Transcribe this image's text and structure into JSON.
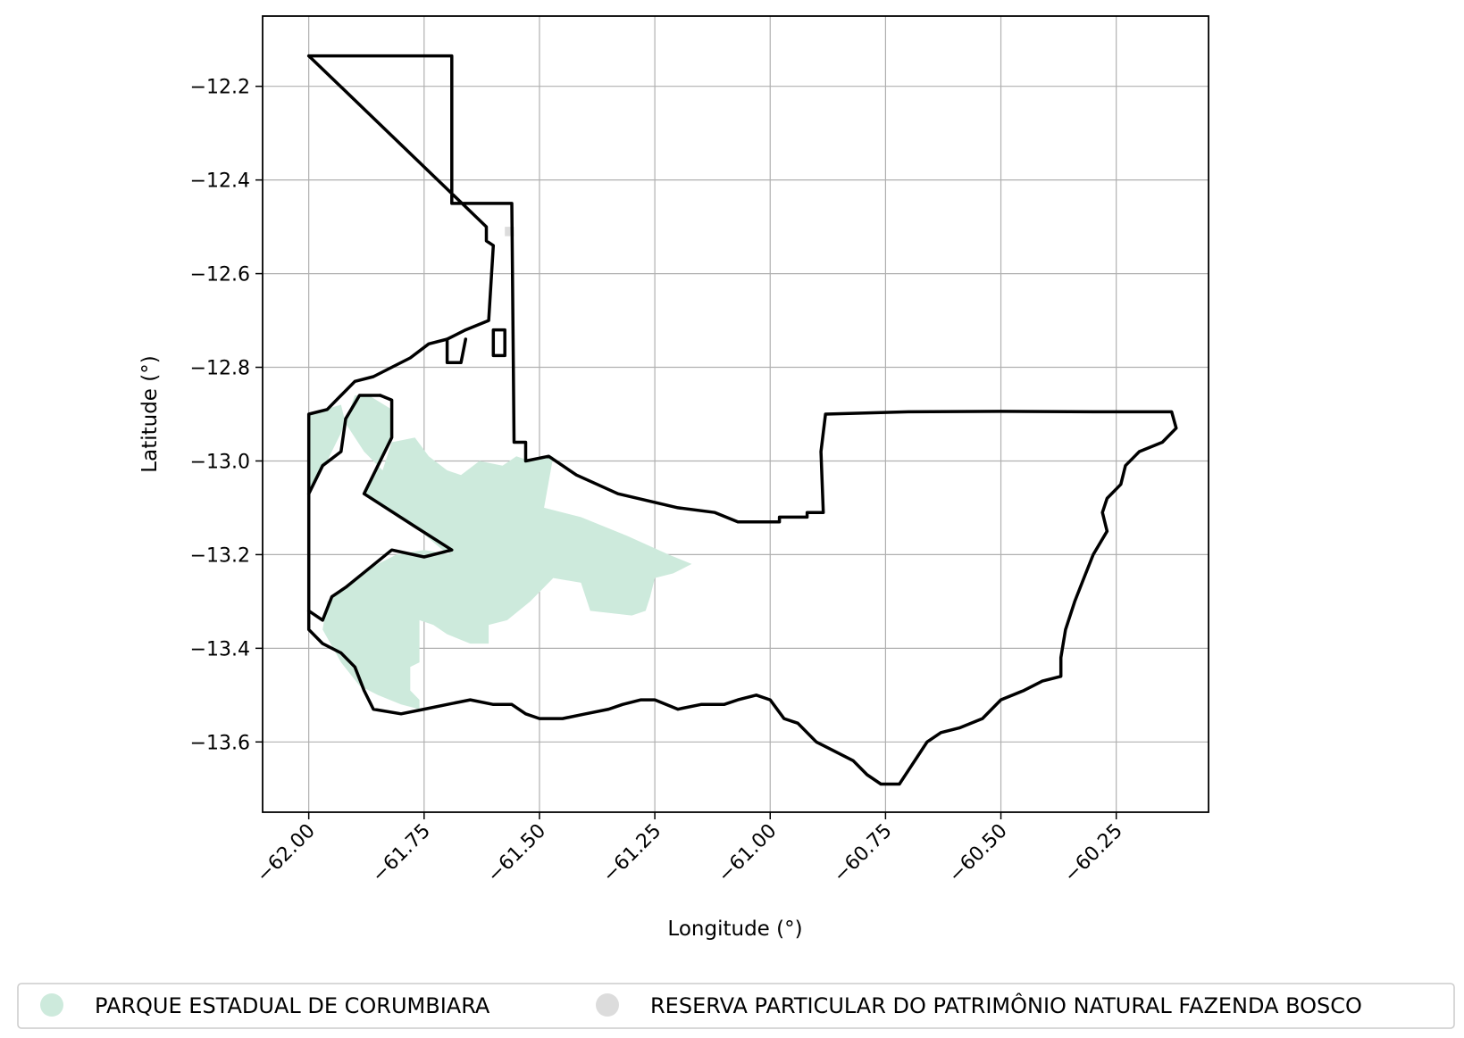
{
  "map": {
    "xlabel": "Longitude (°)",
    "ylabel": "Latitude (°)",
    "xlim": [
      -62.1,
      -60.05
    ],
    "ylim": [
      -13.75,
      -12.05
    ],
    "grid": true,
    "x_ticks": [
      {
        "value": -62.0,
        "label": "−62.00"
      },
      {
        "value": -61.75,
        "label": "−61.75"
      },
      {
        "value": -61.5,
        "label": "−61.50"
      },
      {
        "value": -61.25,
        "label": "−61.25"
      },
      {
        "value": -61.0,
        "label": "−61.00"
      },
      {
        "value": -60.75,
        "label": "−60.75"
      },
      {
        "value": -60.5,
        "label": "−60.50"
      },
      {
        "value": -60.25,
        "label": "−60.25"
      }
    ],
    "y_ticks": [
      {
        "value": -12.2,
        "label": "−12.2"
      },
      {
        "value": -12.4,
        "label": "−12.4"
      },
      {
        "value": -12.6,
        "label": "−12.6"
      },
      {
        "value": -12.8,
        "label": "−12.8"
      },
      {
        "value": -13.0,
        "label": "−13.0"
      },
      {
        "value": -13.2,
        "label": "−13.2"
      },
      {
        "value": -13.4,
        "label": "−13.4"
      },
      {
        "value": -13.6,
        "label": "−13.6"
      }
    ],
    "legend": {
      "placement": "bottom",
      "items": [
        {
          "label": "PARQUE ESTADUAL DE CORUMBIARA",
          "color": "#cdeadc"
        },
        {
          "label": "RESERVA PARTICULAR DO PATRIMÔNIO NATURAL FAZENDA BOSCO",
          "color": "#dcdcdc"
        }
      ]
    },
    "colors": {
      "boundary": "#000000",
      "grid": "#b0b0b0",
      "park_fill": "#cdeadc",
      "reserve_fill": "#dcdcdc"
    },
    "park_area": [
      [
        -62.0,
        -12.9
      ],
      [
        -61.93,
        -12.88
      ],
      [
        -61.92,
        -12.92
      ],
      [
        -61.88,
        -12.98
      ],
      [
        -61.84,
        -13.02
      ],
      [
        -61.82,
        -12.96
      ],
      [
        -61.77,
        -12.95
      ],
      [
        -61.74,
        -12.99
      ],
      [
        -61.7,
        -13.02
      ],
      [
        -61.67,
        -13.03
      ],
      [
        -61.63,
        -13.0
      ],
      [
        -61.58,
        -13.01
      ],
      [
        -61.55,
        -12.99
      ],
      [
        -61.52,
        -13.0
      ],
      [
        -61.47,
        -12.99
      ],
      [
        -61.49,
        -13.1
      ],
      [
        -61.41,
        -13.12
      ],
      [
        -61.31,
        -13.16
      ],
      [
        -61.22,
        -13.2
      ],
      [
        -61.17,
        -13.22
      ],
      [
        -61.21,
        -13.24
      ],
      [
        -61.25,
        -13.25
      ],
      [
        -61.26,
        -13.29
      ],
      [
        -61.27,
        -13.32
      ],
      [
        -61.3,
        -13.33
      ],
      [
        -61.39,
        -13.32
      ],
      [
        -61.41,
        -13.26
      ],
      [
        -61.47,
        -13.25
      ],
      [
        -61.52,
        -13.3
      ],
      [
        -61.57,
        -13.34
      ],
      [
        -61.61,
        -13.35
      ],
      [
        -61.61,
        -13.39
      ],
      [
        -61.65,
        -13.39
      ],
      [
        -61.7,
        -13.37
      ],
      [
        -61.73,
        -13.35
      ],
      [
        -61.76,
        -13.34
      ],
      [
        -61.76,
        -13.43
      ],
      [
        -61.78,
        -13.44
      ],
      [
        -61.78,
        -13.49
      ],
      [
        -61.76,
        -13.51
      ],
      [
        -61.76,
        -13.53
      ],
      [
        -61.8,
        -13.52
      ],
      [
        -61.85,
        -13.5
      ],
      [
        -61.89,
        -13.48
      ],
      [
        -61.93,
        -13.43
      ],
      [
        -61.97,
        -13.36
      ],
      [
        -61.96,
        -13.3
      ],
      [
        -61.92,
        -13.27
      ],
      [
        -61.87,
        -13.23
      ],
      [
        -61.81,
        -13.2
      ],
      [
        -61.75,
        -13.19
      ],
      [
        -61.69,
        -13.2
      ],
      [
        -61.71,
        -13.19
      ],
      [
        -61.77,
        -13.14
      ],
      [
        -61.88,
        -13.07
      ],
      [
        -61.82,
        -12.95
      ],
      [
        -61.82,
        -12.89
      ],
      [
        -61.87,
        -12.86
      ],
      [
        -61.9,
        -12.86
      ],
      [
        -61.93,
        -12.94
      ],
      [
        -61.96,
        -13.0
      ],
      [
        -62.0,
        -13.07
      ]
    ],
    "reserve_area": [
      [
        -61.575,
        -12.5
      ],
      [
        -61.555,
        -12.5
      ],
      [
        -61.555,
        -12.52
      ],
      [
        -61.575,
        -12.52
      ]
    ],
    "boundaries": [
      [
        [
          -62.0,
          -12.135
        ],
        [
          -61.69,
          -12.135
        ],
        [
          -61.69,
          -12.45
        ],
        [
          -61.56,
          -12.45
        ],
        [
          -61.555,
          -12.96
        ],
        [
          -61.53,
          -12.96
        ],
        [
          -61.53,
          -13.0
        ],
        [
          -61.48,
          -12.99
        ],
        [
          -61.42,
          -13.03
        ],
        [
          -61.33,
          -13.07
        ],
        [
          -61.2,
          -13.1
        ],
        [
          -61.12,
          -13.11
        ],
        [
          -61.07,
          -13.13
        ],
        [
          -60.98,
          -13.13
        ],
        [
          -60.98,
          -13.12
        ],
        [
          -60.92,
          -13.12
        ],
        [
          -60.92,
          -13.11
        ],
        [
          -60.885,
          -13.11
        ],
        [
          -60.89,
          -12.98
        ],
        [
          -60.88,
          -12.9
        ],
        [
          -60.7,
          -12.895
        ],
        [
          -60.5,
          -12.894
        ],
        [
          -60.3,
          -12.895
        ],
        [
          -60.13,
          -12.895
        ],
        [
          -60.12,
          -12.93
        ],
        [
          -60.15,
          -12.96
        ],
        [
          -60.2,
          -12.98
        ],
        [
          -60.23,
          -13.01
        ],
        [
          -60.24,
          -13.05
        ],
        [
          -60.27,
          -13.08
        ],
        [
          -60.28,
          -13.11
        ],
        [
          -60.27,
          -13.15
        ],
        [
          -60.3,
          -13.2
        ],
        [
          -60.32,
          -13.25
        ],
        [
          -60.34,
          -13.3
        ],
        [
          -60.36,
          -13.36
        ],
        [
          -60.37,
          -13.42
        ],
        [
          -60.37,
          -13.46
        ],
        [
          -60.41,
          -13.47
        ],
        [
          -60.45,
          -13.49
        ],
        [
          -60.5,
          -13.51
        ],
        [
          -60.54,
          -13.55
        ],
        [
          -60.59,
          -13.57
        ],
        [
          -60.63,
          -13.58
        ],
        [
          -60.66,
          -13.6
        ],
        [
          -60.68,
          -13.63
        ],
        [
          -60.7,
          -13.66
        ],
        [
          -60.72,
          -13.69
        ],
        [
          -60.76,
          -13.69
        ],
        [
          -60.79,
          -13.67
        ],
        [
          -60.82,
          -13.64
        ],
        [
          -60.86,
          -13.62
        ],
        [
          -60.9,
          -13.6
        ],
        [
          -60.94,
          -13.56
        ],
        [
          -60.97,
          -13.55
        ],
        [
          -61.0,
          -13.51
        ],
        [
          -61.03,
          -13.5
        ],
        [
          -61.07,
          -13.51
        ],
        [
          -61.1,
          -13.52
        ],
        [
          -61.15,
          -13.52
        ],
        [
          -61.2,
          -13.53
        ],
        [
          -61.25,
          -13.51
        ],
        [
          -61.28,
          -13.51
        ],
        [
          -61.32,
          -13.52
        ],
        [
          -61.35,
          -13.53
        ],
        [
          -61.4,
          -13.54
        ],
        [
          -61.45,
          -13.55
        ],
        [
          -61.5,
          -13.55
        ],
        [
          -61.53,
          -13.54
        ],
        [
          -61.56,
          -13.52
        ],
        [
          -61.6,
          -13.52
        ],
        [
          -61.65,
          -13.51
        ],
        [
          -61.7,
          -13.52
        ],
        [
          -61.75,
          -13.53
        ],
        [
          -61.8,
          -13.54
        ],
        [
          -61.86,
          -13.53
        ],
        [
          -61.88,
          -13.49
        ],
        [
          -61.9,
          -13.44
        ],
        [
          -61.93,
          -13.41
        ],
        [
          -61.97,
          -13.39
        ],
        [
          -62.0,
          -13.36
        ],
        [
          -62.0,
          -12.9
        ],
        [
          -61.96,
          -12.89
        ],
        [
          -61.93,
          -12.86
        ],
        [
          -61.9,
          -12.83
        ],
        [
          -61.86,
          -12.82
        ],
        [
          -61.82,
          -12.8
        ],
        [
          -61.78,
          -12.78
        ],
        [
          -61.74,
          -12.75
        ],
        [
          -61.7,
          -12.74
        ],
        [
          -61.66,
          -12.72
        ],
        [
          -61.61,
          -12.7
        ],
        [
          -61.6,
          -12.54
        ],
        [
          -61.615,
          -12.53
        ],
        [
          -61.615,
          -12.5
        ],
        [
          -62.0,
          -12.135
        ]
      ],
      [
        [
          -61.845,
          -12.86
        ],
        [
          -61.82,
          -12.87
        ],
        [
          -61.82,
          -12.95
        ],
        [
          -61.88,
          -13.07
        ],
        [
          -61.77,
          -13.14
        ],
        [
          -61.69,
          -13.19
        ],
        [
          -61.75,
          -13.205
        ],
        [
          -61.82,
          -13.19
        ],
        [
          -61.87,
          -13.23
        ],
        [
          -61.92,
          -13.27
        ],
        [
          -61.95,
          -13.29
        ],
        [
          -61.97,
          -13.34
        ],
        [
          -62.0,
          -13.32
        ]
      ],
      [
        [
          -62.0,
          -13.07
        ],
        [
          -61.97,
          -13.01
        ],
        [
          -61.93,
          -12.98
        ],
        [
          -61.92,
          -12.91
        ],
        [
          -61.89,
          -12.86
        ],
        [
          -61.845,
          -12.86
        ]
      ],
      [
        [
          -61.7,
          -12.74
        ],
        [
          -61.7,
          -12.79
        ],
        [
          -61.67,
          -12.79
        ],
        [
          -61.66,
          -12.74
        ]
      ],
      [
        [
          -61.6,
          -12.72
        ],
        [
          -61.575,
          -12.72
        ],
        [
          -61.575,
          -12.775
        ],
        [
          -61.6,
          -12.775
        ],
        [
          -61.6,
          -12.72
        ]
      ]
    ]
  }
}
